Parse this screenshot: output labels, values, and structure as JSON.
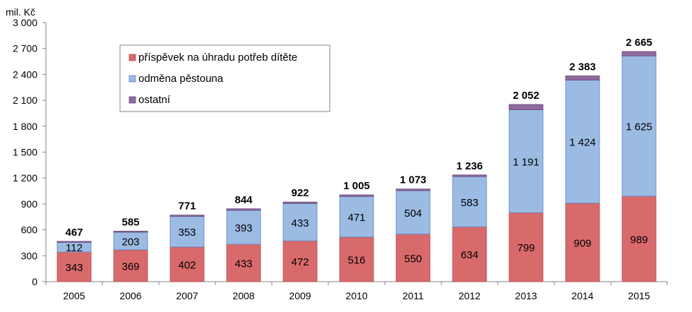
{
  "chart_data": {
    "type": "bar",
    "stacked": true,
    "unit_label": "mil. Kč",
    "categories": [
      "2005",
      "2006",
      "2007",
      "2008",
      "2009",
      "2010",
      "2011",
      "2012",
      "2013",
      "2014",
      "2015"
    ],
    "series": [
      {
        "name": "příspěvek na úhradu potřeb dítěte",
        "color": "#d96a6c",
        "values": [
          343,
          369,
          402,
          433,
          472,
          516,
          550,
          634,
          799,
          909,
          989
        ]
      },
      {
        "name": "odměna pěstouna",
        "color": "#9bbbe3",
        "values": [
          112,
          203,
          353,
          393,
          433,
          471,
          504,
          583,
          1191,
          1424,
          1625
        ]
      },
      {
        "name": "ostatní",
        "color": "#8e6a9e",
        "values": [
          12,
          13,
          16,
          18,
          17,
          18,
          19,
          19,
          62,
          50,
          51
        ]
      }
    ],
    "totals": [
      467,
      585,
      771,
      844,
      922,
      1005,
      1073,
      1236,
      2052,
      2383,
      2665
    ],
    "value_labels": {
      "příspěvek": [
        "343",
        "369",
        "402",
        "433",
        "472",
        "516",
        "550",
        "634",
        "799",
        "909",
        "989"
      ],
      "odměna": [
        "112",
        "203",
        "353",
        "393",
        "433",
        "471",
        "504",
        "583",
        "1 191",
        "1 424",
        "1 625"
      ],
      "totals": [
        "467",
        "585",
        "771",
        "844",
        "922",
        "1 005",
        "1 073",
        "1 236",
        "2 052",
        "2 383",
        "2 665"
      ]
    },
    "y_ticks": [
      "0",
      "300",
      "600",
      "900",
      "1 200",
      "1 500",
      "1 800",
      "2 100",
      "2 400",
      "2 700",
      "3 000"
    ],
    "ylim": [
      0,
      3000
    ],
    "grid": false,
    "legend_position": "top-left"
  }
}
